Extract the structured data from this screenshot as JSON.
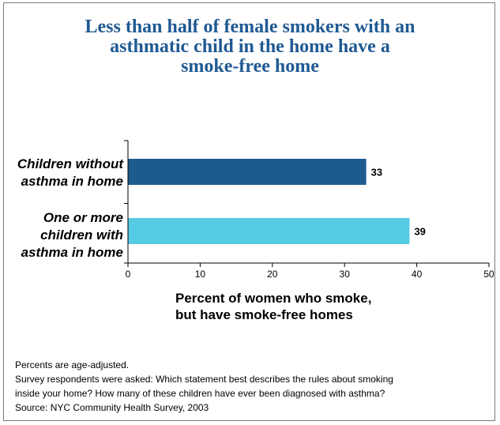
{
  "title_lines": [
    "Less than half of female smokers with an",
    "asthmatic child in the home have a",
    "smoke-free home"
  ],
  "category_label_lines": [
    [
      "Children without",
      "asthma in home"
    ],
    [
      "One or more",
      "children with",
      "asthma in home"
    ]
  ],
  "xlabel_lines": [
    "Percent of women who smoke,",
    "but have smoke-free homes"
  ],
  "notes": [
    "Percents are age-adjusted.",
    "Survey respondents were asked: Which statement best describes the rules about smoking",
    "inside your home? How many of these children have ever been diagnosed with asthma?",
    "Source: NYC Community Health Survey, 2003"
  ],
  "colors": {
    "title": "#1f5a93",
    "series": [
      "#1d5b8f",
      "#55cbe3"
    ]
  },
  "chart_data": {
    "type": "bar",
    "orientation": "horizontal",
    "categories": [
      "Children without asthma in home",
      "One or more children with asthma in home"
    ],
    "values": [
      33,
      39
    ],
    "data_labels": [
      "33",
      "39"
    ],
    "xlim": [
      0,
      50
    ],
    "xticks": [
      0,
      10,
      20,
      30,
      40,
      50
    ],
    "xtick_labels": [
      "0",
      "10",
      "20",
      "30",
      "40",
      "50"
    ],
    "grid": false,
    "legend": "none"
  }
}
